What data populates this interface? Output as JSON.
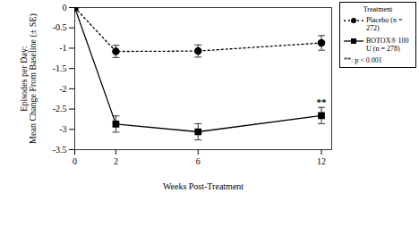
{
  "chart_data": {
    "type": "line",
    "x_label": "Weeks Post-Treatment",
    "y_label": "Episodes per Day:\nMean Change From Baseline (± SE)",
    "legend_title": "Treatment",
    "legend_note": "**: p < 0.001",
    "legend": "upper right",
    "x": [
      0,
      2,
      6,
      12
    ],
    "xlim": [
      0,
      12.5
    ],
    "xticks": [
      0,
      2,
      6,
      12
    ],
    "ylim": [
      -3.5,
      0
    ],
    "yticks": [
      0,
      -0.5,
      -1,
      -1.5,
      -2,
      -2.5,
      -3,
      -3.5
    ],
    "grid": false,
    "series": [
      {
        "name": "Placebo (n = 272)",
        "color": "#000000",
        "marker": "circle",
        "line_style": "dotted",
        "values": [
          0,
          -1.08,
          -1.07,
          -0.87
        ],
        "errors": [
          0,
          0.15,
          0.15,
          0.18
        ]
      },
      {
        "name": "BOTOX® 100 U (n = 278)",
        "color": "#000000",
        "marker": "square",
        "line_style": "solid",
        "values": [
          0,
          -2.87,
          -3.06,
          -2.66
        ],
        "errors": [
          0,
          0.2,
          0.2,
          0.2
        ]
      }
    ],
    "annotations": [
      {
        "text": "**",
        "x": 12,
        "y": -2.4
      }
    ]
  }
}
